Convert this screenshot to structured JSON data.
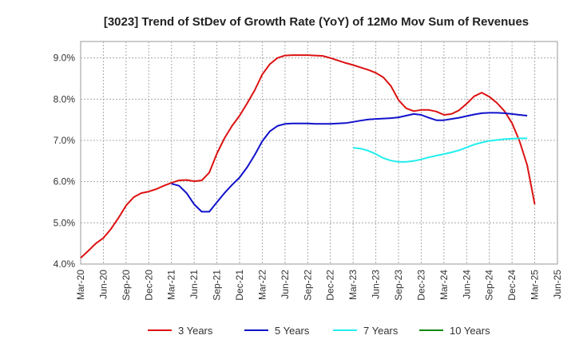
{
  "chart_data": {
    "type": "line",
    "title": "[3023]  Trend of StDev of Growth Rate (YoY) of 12Mo Mov Sum of Revenues",
    "xlabel": "",
    "ylabel": "",
    "ylim": [
      4.0,
      9.4
    ],
    "yticks": [
      "4.0%",
      "5.0%",
      "6.0%",
      "7.0%",
      "8.0%",
      "9.0%"
    ],
    "ytick_values": [
      4.0,
      5.0,
      6.0,
      7.0,
      8.0,
      9.0
    ],
    "xticks": [
      "Mar-20",
      "Jun-20",
      "Sep-20",
      "Dec-20",
      "Mar-21",
      "Jun-21",
      "Sep-21",
      "Dec-21",
      "Mar-22",
      "Jun-22",
      "Sep-22",
      "Dec-22",
      "Mar-23",
      "Jun-23",
      "Sep-23",
      "Dec-23",
      "Mar-24",
      "Jun-24",
      "Sep-24",
      "Dec-24",
      "Mar-25",
      "Jun-25"
    ],
    "months": [
      "Mar-20",
      "Apr-20",
      "May-20",
      "Jun-20",
      "Jul-20",
      "Aug-20",
      "Sep-20",
      "Oct-20",
      "Nov-20",
      "Dec-20",
      "Jan-21",
      "Feb-21",
      "Mar-21",
      "Apr-21",
      "May-21",
      "Jun-21",
      "Jul-21",
      "Aug-21",
      "Sep-21",
      "Oct-21",
      "Nov-21",
      "Dec-21",
      "Jan-22",
      "Feb-22",
      "Mar-22",
      "Apr-22",
      "May-22",
      "Jun-22",
      "Jul-22",
      "Aug-22",
      "Sep-22",
      "Oct-22",
      "Nov-22",
      "Dec-22",
      "Jan-23",
      "Feb-23",
      "Mar-23",
      "Apr-23",
      "May-23",
      "Jun-23",
      "Jul-23",
      "Aug-23",
      "Sep-23",
      "Oct-23",
      "Nov-23",
      "Dec-23",
      "Jan-24",
      "Feb-24",
      "Mar-24",
      "Apr-24",
      "May-24",
      "Jun-24",
      "Jul-24",
      "Aug-24",
      "Sep-24",
      "Oct-24",
      "Nov-24",
      "Dec-24",
      "Jan-25",
      "Feb-25",
      "Mar-25",
      "Apr-25",
      "May-25",
      "Jun-25"
    ],
    "grid": true,
    "legend_position": "bottom",
    "series": [
      {
        "name": "3 Years",
        "color": "#dd1111",
        "start_index": 0,
        "values": [
          4.15,
          4.32,
          4.5,
          4.63,
          4.85,
          5.12,
          5.42,
          5.62,
          5.72,
          5.76,
          5.82,
          5.9,
          5.97,
          6.03,
          6.04,
          6.01,
          6.03,
          6.22,
          6.68,
          7.05,
          7.35,
          7.6,
          7.9,
          8.22,
          8.6,
          8.85,
          9.0,
          9.06,
          9.07,
          9.07,
          9.07,
          9.06,
          9.05,
          9.0,
          8.94,
          8.88,
          8.83,
          8.77,
          8.71,
          8.64,
          8.53,
          8.32,
          7.98,
          7.78,
          7.71,
          7.74,
          7.74,
          7.7,
          7.62,
          7.64,
          7.73,
          7.89,
          8.07,
          8.16,
          8.06,
          7.91,
          7.71,
          7.42,
          6.98,
          6.4,
          5.45
        ]
      },
      {
        "name": "5 Years",
        "color": "#1111cc",
        "start_index": 12,
        "values": [
          5.95,
          5.9,
          5.72,
          5.45,
          5.27,
          5.27,
          5.5,
          5.72,
          5.92,
          6.1,
          6.35,
          6.65,
          6.98,
          7.22,
          7.35,
          7.4,
          7.41,
          7.41,
          7.41,
          7.4,
          7.4,
          7.4,
          7.41,
          7.42,
          7.45,
          7.48,
          7.51,
          7.52,
          7.53,
          7.54,
          7.56,
          7.6,
          7.64,
          7.62,
          7.55,
          7.49,
          7.49,
          7.52,
          7.55,
          7.59,
          7.63,
          7.66,
          7.67,
          7.67,
          7.66,
          7.64,
          7.62,
          7.6
        ]
      },
      {
        "name": "7 Years",
        "color": "#22eeee",
        "start_index": 36,
        "values": [
          6.82,
          6.8,
          6.75,
          6.67,
          6.57,
          6.51,
          6.48,
          6.48,
          6.5,
          6.54,
          6.59,
          6.63,
          6.67,
          6.71,
          6.76,
          6.83,
          6.9,
          6.95,
          6.99,
          7.01,
          7.03,
          7.04,
          7.05,
          7.05
        ]
      },
      {
        "name": "10 Years",
        "color": "#118811",
        "start_index": 0,
        "values": []
      }
    ]
  }
}
